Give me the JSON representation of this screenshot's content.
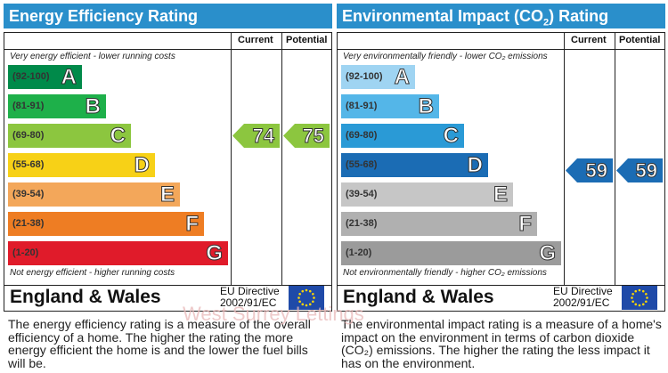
{
  "energy": {
    "title": "Energy Efficiency Rating",
    "col_current": "Current",
    "col_potential": "Potential",
    "top_note": "Very energy efficient - lower running costs",
    "bottom_note": "Not energy efficient - higher running costs",
    "bands": [
      {
        "range": "(92-100)",
        "letter": "A",
        "color": "#008a4a"
      },
      {
        "range": "(81-91)",
        "letter": "B",
        "color": "#1eb04a"
      },
      {
        "range": "(69-80)",
        "letter": "C",
        "color": "#8cc63f"
      },
      {
        "range": "(55-68)",
        "letter": "D",
        "color": "#f7d117"
      },
      {
        "range": "(39-54)",
        "letter": "E",
        "color": "#f3a75a"
      },
      {
        "range": "(21-38)",
        "letter": "F",
        "color": "#ee7d23"
      },
      {
        "range": "(1-20)",
        "letter": "G",
        "color": "#e01b2a"
      }
    ],
    "current": "74",
    "potential": "75",
    "indicator_color": "#8cc63f",
    "region": "England & Wales",
    "directive_line1": "EU Directive",
    "directive_line2": "2002/91/EC",
    "description": "The energy efficiency rating is a measure of the overall efficiency of a home. The higher the rating the more energy efficient the home is and the lower the fuel bills will be."
  },
  "environment": {
    "title_pre": "Environmental Impact (CO",
    "title_sub": "2",
    "title_post": ") Rating",
    "col_current": "Current",
    "col_potential": "Potential",
    "top_note": "Very environmentally friendly - lower CO₂ emissions",
    "bottom_note": "Not environmentally friendly - higher CO₂ emissions",
    "bands": [
      {
        "range": "(92-100)",
        "letter": "A",
        "color": "#9fd4f2"
      },
      {
        "range": "(81-91)",
        "letter": "B",
        "color": "#54b6e8"
      },
      {
        "range": "(69-80)",
        "letter": "C",
        "color": "#2a9ad6"
      },
      {
        "range": "(55-68)",
        "letter": "D",
        "color": "#1b6cb4"
      },
      {
        "range": "(39-54)",
        "letter": "E",
        "color": "#c6c6c6"
      },
      {
        "range": "(21-38)",
        "letter": "F",
        "color": "#b0b0b0"
      },
      {
        "range": "(1-20)",
        "letter": "G",
        "color": "#9b9b9b"
      }
    ],
    "current": "59",
    "potential": "59",
    "indicator_color": "#1b6cb4",
    "region": "England & Wales",
    "directive_line1": "EU Directive",
    "directive_line2": "2002/91/EC",
    "description": "The environmental impact rating is a measure of a home's impact on the environment in terms of carbon dioxide (CO₂) emissions. The higher the rating the less impact it has on the environment."
  },
  "watermark": "West Surrey Lettings"
}
